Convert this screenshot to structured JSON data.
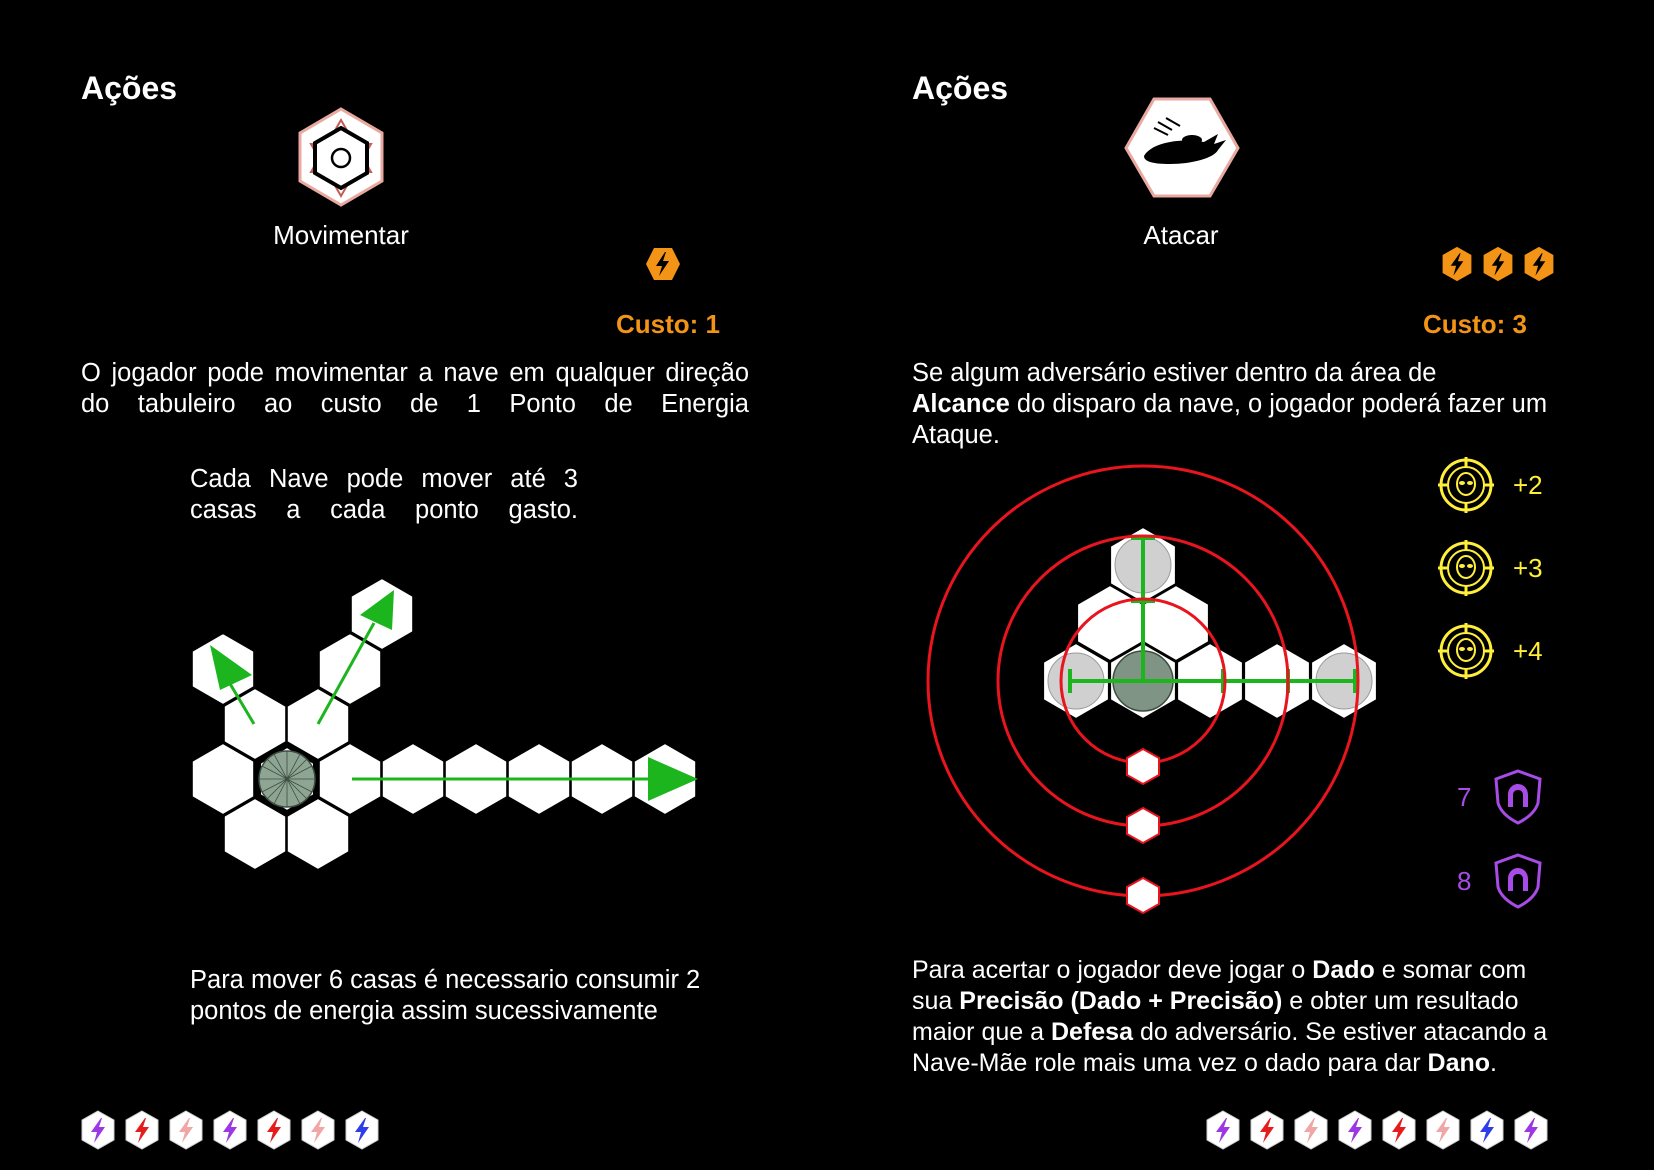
{
  "left": {
    "heading": "Ações",
    "action_icon": "movement-hexagon-icon",
    "action_name": "Movimentar",
    "cost_icons": [
      "energy-bolt-icon"
    ],
    "cost_label": "Custo: 1",
    "description": "O jogador pode movimentar a nave em qualquer direção do tabuleiro ao custo de 1 Ponto de Energia",
    "note1": "Cada Nave pode mover até 3 casas a cada ponto gasto.",
    "note2": "Para mover 6 casas é necessario consumir 2 pontos de energia assim sucessivamente",
    "footer_icons": [
      "purple-bolt-hex-icon",
      "red-bolt-hex-icon",
      "pink-bolt-hex-icon",
      "purple-bolt-hex-icon",
      "red-bolt-hex-icon",
      "pink-bolt-hex-icon",
      "blue-bolt-hex-icon"
    ]
  },
  "right": {
    "heading": "Ações",
    "action_icon": "spaceship-attack-icon",
    "action_name": "Atacar",
    "cost_icons": [
      "energy-bolt-icon",
      "energy-bolt-icon",
      "energy-bolt-icon"
    ],
    "cost_label": "Custo: 3",
    "description": {
      "p1": "Se algum adversário estiver dentro da área de",
      "b1": "Alcance",
      "p2": "do disparo da nave, o  jogador poderá fazer um Ataque."
    },
    "bonuses": [
      {
        "icon": "alien-target-icon",
        "value": "+2"
      },
      {
        "icon": "alien-target-icon",
        "value": "+3"
      },
      {
        "icon": "alien-target-icon",
        "value": "+4"
      }
    ],
    "defenses": [
      {
        "value": "7",
        "icon": "magnet-shield-icon"
      },
      {
        "value": "8",
        "icon": "magnet-shield-icon"
      }
    ],
    "rule": {
      "t1": "Para acertar o jogador deve jogar o",
      "b1": "Dado",
      "t2": "e somar  com sua",
      "b2": "Precisão (Dado + Precisão)",
      "t3": "e obter um resultado maior que a",
      "b3": "Defesa",
      "t4": "do adversário. Se estiver atacando a Nave-Mãe role mais uma vez o dado para dar ",
      "b4": "Dano",
      "t5": "."
    },
    "footer_icons": [
      "purple-bolt-hex-icon",
      "red-bolt-hex-icon",
      "pink-bolt-hex-icon",
      "purple-bolt-hex-icon",
      "red-bolt-hex-icon",
      "pink-bolt-hex-icon",
      "blue-bolt-hex-icon",
      "purple-bolt-hex-icon"
    ]
  },
  "colors": {
    "cost": "#f39416",
    "move_arrow": "#1db51d",
    "range_ring": "#e8141e",
    "bonus": "#ffef3a",
    "defense": "#a74ce6"
  }
}
